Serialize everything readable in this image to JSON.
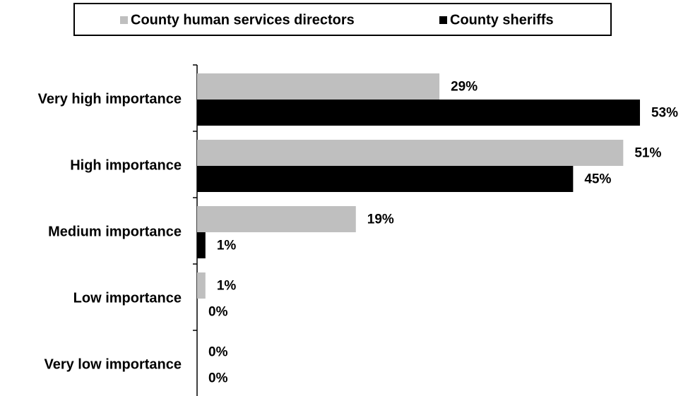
{
  "chart_data": {
    "type": "bar",
    "orientation": "horizontal",
    "categories": [
      "Very high importance",
      "High importance",
      "Medium importance",
      "Low importance",
      "Very low importance"
    ],
    "series": [
      {
        "name": "County human services directors",
        "color": "#bfbfbf",
        "values": [
          29,
          51,
          19,
          1,
          0
        ],
        "value_labels": [
          "29%",
          "51%",
          "19%",
          "1%",
          "0%"
        ]
      },
      {
        "name": "County sheriffs",
        "color": "#000000",
        "values": [
          53,
          45,
          1,
          0,
          0
        ],
        "value_labels": [
          "53%",
          "45%",
          "1%",
          "0%",
          "0%"
        ]
      }
    ],
    "legend": "top"
  }
}
